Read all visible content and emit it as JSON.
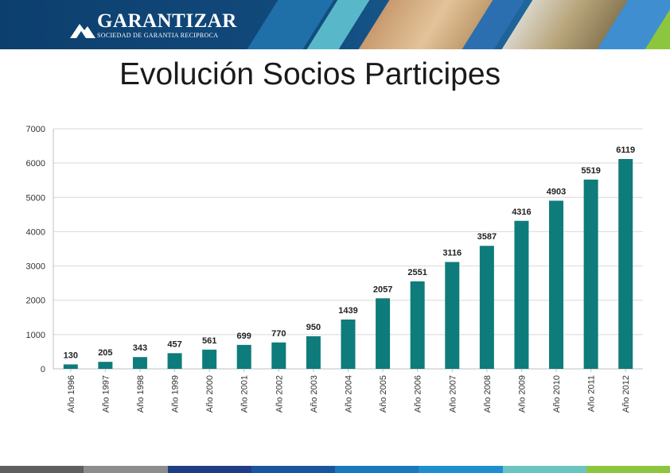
{
  "header": {
    "logo_name": "GARANTIZAR",
    "logo_sub": "SOCIEDAD DE GARANTIA RECIPROCA"
  },
  "slide": {
    "title": "Evolución Socios Participes"
  },
  "colors": {
    "bar": "#0e7c7b",
    "grid": "#d9d9d9",
    "footer": [
      "#5f5f5f",
      "#8d8d8d",
      "#1f3e86",
      "#1a56a0",
      "#1a78c0",
      "#1d8fd0",
      "#6cc4c2",
      "#8cc63f"
    ]
  },
  "chart_data": {
    "type": "bar",
    "title": "",
    "xlabel": "",
    "ylabel": "",
    "ylim": [
      0,
      7000
    ],
    "yticks": [
      0,
      1000,
      2000,
      3000,
      4000,
      5000,
      6000,
      7000
    ],
    "categories": [
      "Año 1996",
      "Año 1997",
      "Año 1998",
      "Año 1999",
      "Año 2000",
      "Año 2001",
      "Año 2002",
      "Año 2003",
      "Año 2004",
      "Año 2005",
      "Año 2006",
      "Año 2007",
      "Año 2008",
      "Año 2009",
      "Año 2010",
      "Año 2011",
      "Año 2012"
    ],
    "values": [
      130,
      205,
      343,
      457,
      561,
      699,
      770,
      950,
      1439,
      2057,
      2551,
      3116,
      3587,
      4316,
      4903,
      5519,
      6119
    ],
    "grid": true,
    "data_labels": true
  }
}
